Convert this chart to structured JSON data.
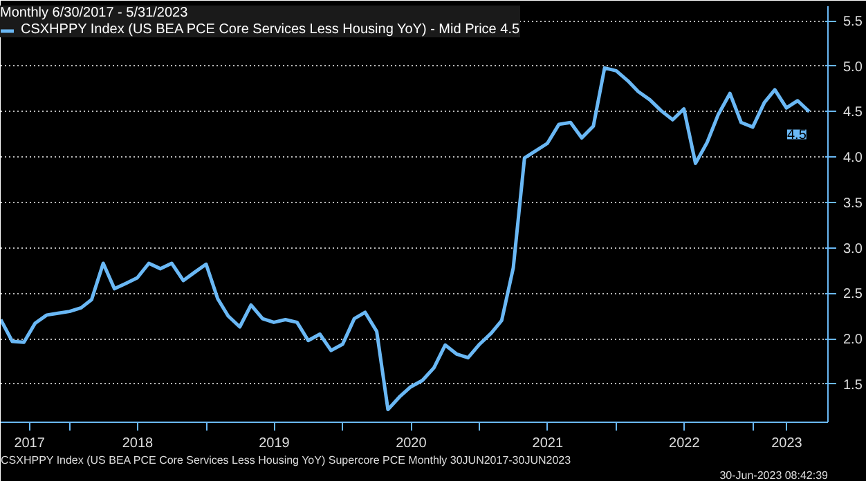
{
  "chart_data": {
    "type": "line",
    "legend_title": "Monthly 6/30/2017 - 5/31/2023",
    "x": [
      "2017-06-30",
      "2017-07-31",
      "2017-08-31",
      "2017-09-30",
      "2017-10-31",
      "2017-11-30",
      "2017-12-31",
      "2018-01-31",
      "2018-02-28",
      "2018-03-31",
      "2018-04-30",
      "2018-05-31",
      "2018-06-30",
      "2018-07-31",
      "2018-08-31",
      "2018-09-30",
      "2018-10-31",
      "2018-11-30",
      "2018-12-31",
      "2019-01-31",
      "2019-02-28",
      "2019-03-31",
      "2019-04-30",
      "2019-05-31",
      "2019-06-30",
      "2019-07-31",
      "2019-08-31",
      "2019-09-30",
      "2019-10-31",
      "2019-11-30",
      "2019-12-31",
      "2020-01-31",
      "2020-02-29",
      "2020-03-31",
      "2020-04-30",
      "2020-05-31",
      "2020-06-30",
      "2020-07-31",
      "2020-08-31",
      "2020-09-30",
      "2020-10-31",
      "2020-11-30",
      "2020-12-31",
      "2021-01-31",
      "2021-02-28",
      "2021-03-31",
      "2021-04-30",
      "2021-05-31",
      "2021-06-30",
      "2021-07-31",
      "2021-08-31",
      "2021-09-30",
      "2021-10-31",
      "2021-11-30",
      "2021-12-31",
      "2022-01-31",
      "2022-02-28",
      "2022-03-31",
      "2022-04-30",
      "2022-05-31",
      "2022-06-30",
      "2022-07-31",
      "2022-08-31",
      "2022-09-30",
      "2022-10-31",
      "2022-11-30",
      "2022-12-31",
      "2023-01-31",
      "2023-02-28",
      "2023-03-31",
      "2023-04-30",
      "2023-05-31"
    ],
    "series": [
      {
        "name": "CSXHPPY Index (US BEA PCE Core Services Less Housing YoY) - Mid Price 4.5",
        "color": "#6ab8f5",
        "values": [
          2.21,
          1.97,
          1.96,
          2.17,
          2.26,
          2.28,
          2.3,
          2.34,
          2.43,
          2.83,
          2.55,
          2.61,
          2.67,
          2.83,
          2.77,
          2.83,
          2.64,
          2.73,
          2.82,
          2.44,
          2.25,
          2.13,
          2.37,
          2.22,
          2.18,
          2.21,
          2.18,
          1.98,
          2.05,
          1.87,
          1.94,
          2.22,
          2.29,
          2.08,
          1.22,
          1.36,
          1.47,
          1.54,
          1.68,
          1.93,
          1.83,
          1.79,
          1.94,
          2.06,
          2.2,
          2.78,
          3.99,
          4.07,
          4.15,
          4.36,
          4.38,
          4.21,
          4.34,
          4.98,
          4.95,
          4.84,
          4.72,
          4.63,
          4.51,
          4.41,
          4.53,
          3.93,
          4.16,
          4.47,
          4.7,
          4.38,
          4.33,
          4.6,
          4.74,
          4.54,
          4.62,
          4.5
        ],
        "value_labels": [
          null,
          null,
          null,
          null,
          null,
          null,
          null,
          null,
          null,
          null,
          null,
          null,
          null,
          null,
          null,
          null,
          null,
          null,
          null,
          null,
          null,
          null,
          null,
          null,
          null,
          null,
          null,
          null,
          null,
          null,
          null,
          null,
          null,
          null,
          null,
          null,
          null,
          null,
          null,
          null,
          null,
          null,
          null,
          null,
          null,
          null,
          null,
          null,
          null,
          null,
          null,
          null,
          null,
          null,
          null,
          null,
          null,
          null,
          null,
          null,
          null,
          null,
          null,
          null,
          null,
          null,
          null,
          null,
          null,
          null,
          null,
          "4.5"
        ]
      }
    ],
    "xlim": [
      "2017-06-30",
      "2023-07-20"
    ],
    "xticks": [
      {
        "value": "2018-01-01",
        "label": null
      },
      {
        "value": "2019-01-01",
        "label": null
      },
      {
        "value": "2020-01-01",
        "label": null
      },
      {
        "value": "2021-01-01",
        "label": null
      },
      {
        "value": "2022-01-01",
        "label": null
      },
      {
        "value": "2023-01-01",
        "label": null
      },
      {
        "value": "2017-09-15",
        "label": "2017"
      },
      {
        "value": "2018-07-01",
        "label": "2018"
      },
      {
        "value": "2019-07-01",
        "label": "2019"
      },
      {
        "value": "2020-07-01",
        "label": "2020"
      },
      {
        "value": "2021-07-01",
        "label": "2021"
      },
      {
        "value": "2022-07-01",
        "label": "2022"
      },
      {
        "value": "2023-04-01",
        "label": "2023"
      }
    ],
    "ylim": [
      1.08,
      5.66
    ],
    "yticks": [
      1.5,
      {
        "value": 2,
        "label": "2.0"
      },
      2.5,
      {
        "value": 3,
        "label": "3.0"
      },
      3.5,
      {
        "value": 4,
        "label": "4.0"
      },
      4.5,
      {
        "value": 5,
        "label": "5.0"
      },
      5.5
    ],
    "grid": "y",
    "legend": "top left",
    "annotations": [
      "CSXHPPY Index (US BEA PCE Core Services Less Housing YoY) Supercore PCE  Monthly 30JUN2017-30JUN2023",
      "30-Jun-2023 08:42:39"
    ]
  }
}
